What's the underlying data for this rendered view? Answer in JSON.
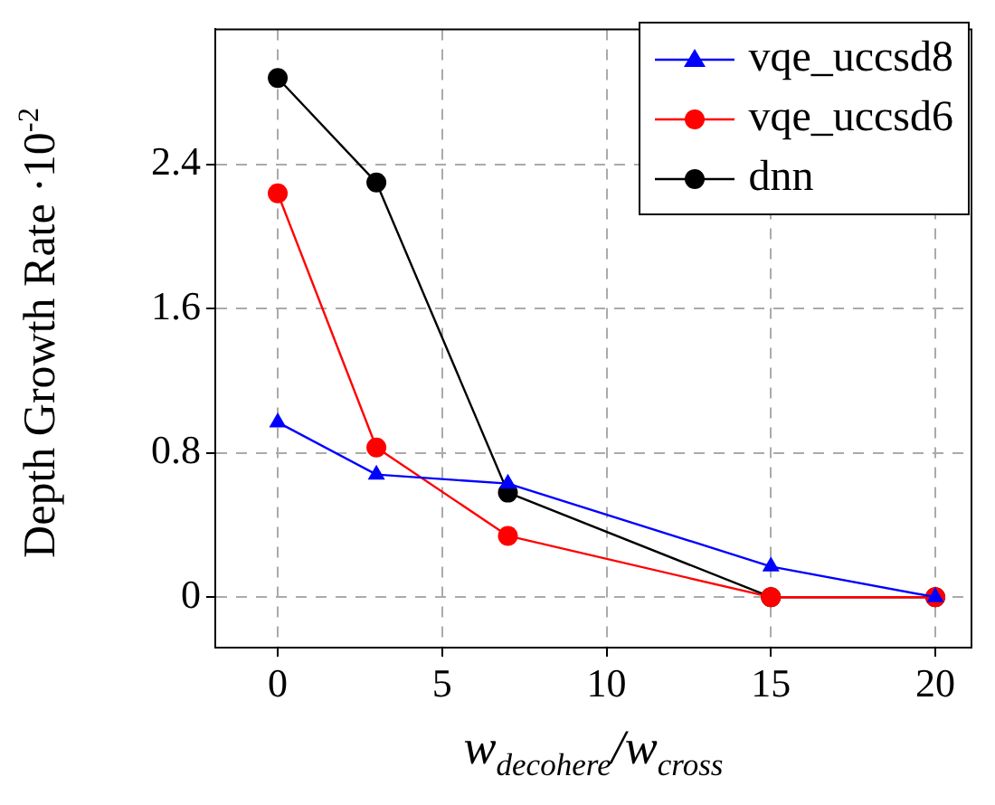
{
  "chart_data": {
    "type": "line",
    "xlabel": "w$_{decohere}$/w$_{cross}$",
    "ylabel": "Depth Growth Rate ·10$^{-2}$",
    "x": [
      0,
      3,
      7,
      15,
      20
    ],
    "series": [
      {
        "name": "vqe_uccsd8",
        "color": "#0000ff",
        "marker": "triangle",
        "values": [
          0.97,
          0.68,
          0.63,
          0.17,
          0
        ]
      },
      {
        "name": "vqe_uccsd6",
        "color": "#ff0000",
        "marker": "circle",
        "values": [
          2.24,
          0.83,
          0.34,
          0,
          0
        ]
      },
      {
        "name": "dnn",
        "color": "#000000",
        "marker": "circle",
        "values": [
          2.88,
          2.3,
          0.58,
          0,
          0
        ]
      }
    ],
    "xlim": [
      -1.9,
      21.1
    ],
    "xticks": [
      0,
      5,
      10,
      15,
      20
    ],
    "ylim": [
      -0.28,
      3.15
    ],
    "yticks": [
      0,
      0.8,
      1.6,
      2.4
    ],
    "grid": true,
    "legend": "top right",
    "line_style": "solid"
  }
}
